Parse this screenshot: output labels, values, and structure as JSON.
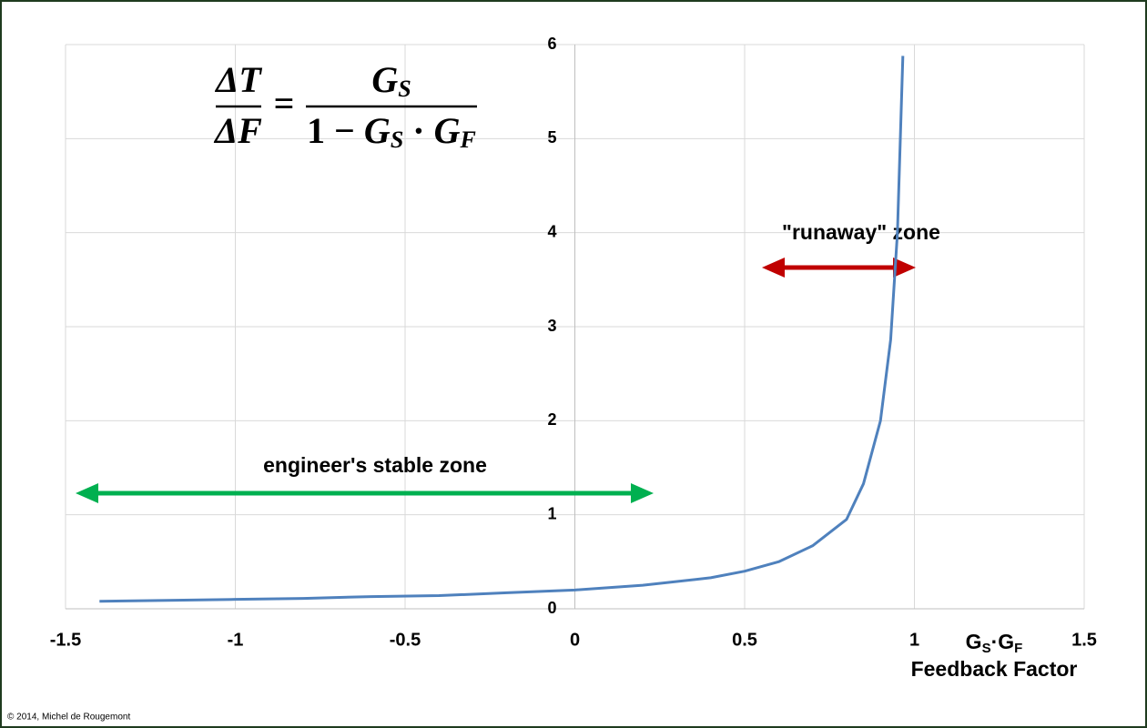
{
  "chart_data": {
    "type": "line",
    "formula": {
      "lhs_num": "ΔT",
      "lhs_den": "ΔF",
      "op": "=",
      "rhs_num": [
        "G",
        "S"
      ],
      "rhs_den": [
        "1 − ",
        "G",
        "S",
        " · ",
        "G",
        "F"
      ]
    },
    "x": [
      -1.4,
      -1.2,
      -1.0,
      -0.8,
      -0.6,
      -0.4,
      -0.2,
      0,
      0.2,
      0.4,
      0.5,
      0.6,
      0.7,
      0.8,
      0.85,
      0.9,
      0.93,
      0.95,
      0.966
    ],
    "series": [
      {
        "color": "#4f81bd",
        "values": [
          0.08,
          0.09,
          0.1,
          0.11,
          0.13,
          0.14,
          0.17,
          0.2,
          0.25,
          0.33,
          0.4,
          0.5,
          0.67,
          0.95,
          1.33,
          2.0,
          2.86,
          4.0,
          5.88
        ]
      }
    ],
    "xlim": [
      -1.5,
      1.5
    ],
    "xticks": [
      -1.5,
      -1,
      -0.5,
      0,
      0.5,
      1,
      1.5
    ],
    "ylim": [
      0,
      6
    ],
    "yticks": [
      0,
      1,
      2,
      3,
      4,
      5,
      6
    ],
    "grid": true,
    "xlabel_symbol": [
      "G",
      "S",
      "·G",
      "F"
    ],
    "xlabel": "Feedback Factor",
    "annotations": [
      "engineer's stable zone",
      "\"runaway\"  zone"
    ],
    "credit": "© 2014, Michel de Rougemont"
  }
}
